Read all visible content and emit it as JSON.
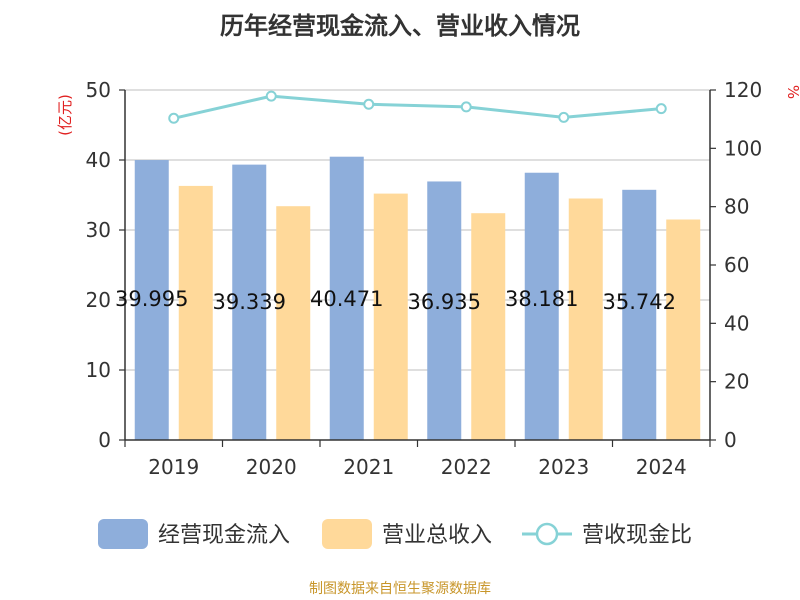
{
  "chart_data": {
    "type": "bar",
    "title": "历年经营现金流入、营业收入情况",
    "categories": [
      "2019",
      "2020",
      "2021",
      "2022",
      "2023",
      "2024"
    ],
    "series": [
      {
        "name": "经营现金流入",
        "kind": "bar",
        "axis": "left",
        "color": "#8eaedb",
        "values": [
          39.995,
          39.339,
          40.471,
          36.935,
          38.181,
          35.742
        ],
        "labels": [
          "39.995",
          "39.339",
          "40.471",
          "36.935",
          "38.181",
          "35.742"
        ]
      },
      {
        "name": "营业总收入",
        "kind": "bar",
        "axis": "left",
        "color": "#ffd99a",
        "values": [
          36.3,
          33.4,
          35.2,
          32.4,
          34.5,
          31.5
        ]
      },
      {
        "name": "营收现金比",
        "kind": "line",
        "axis": "right",
        "color": "#86d2d6",
        "values": [
          110.3,
          117.9,
          115.1,
          114.2,
          110.6,
          113.6
        ]
      }
    ],
    "yleft": {
      "label": "(亿元)",
      "ylim": [
        0,
        50
      ],
      "ticks": [
        "0",
        "10",
        "20",
        "30",
        "40",
        "50"
      ]
    },
    "yright": {
      "label": "%",
      "ylim": [
        0,
        120
      ],
      "ticks": [
        "0",
        "20",
        "40",
        "60",
        "80",
        "100",
        "120"
      ]
    },
    "legend_position": "bottom",
    "grid": true
  },
  "source": "制图数据来自恒生聚源数据库"
}
